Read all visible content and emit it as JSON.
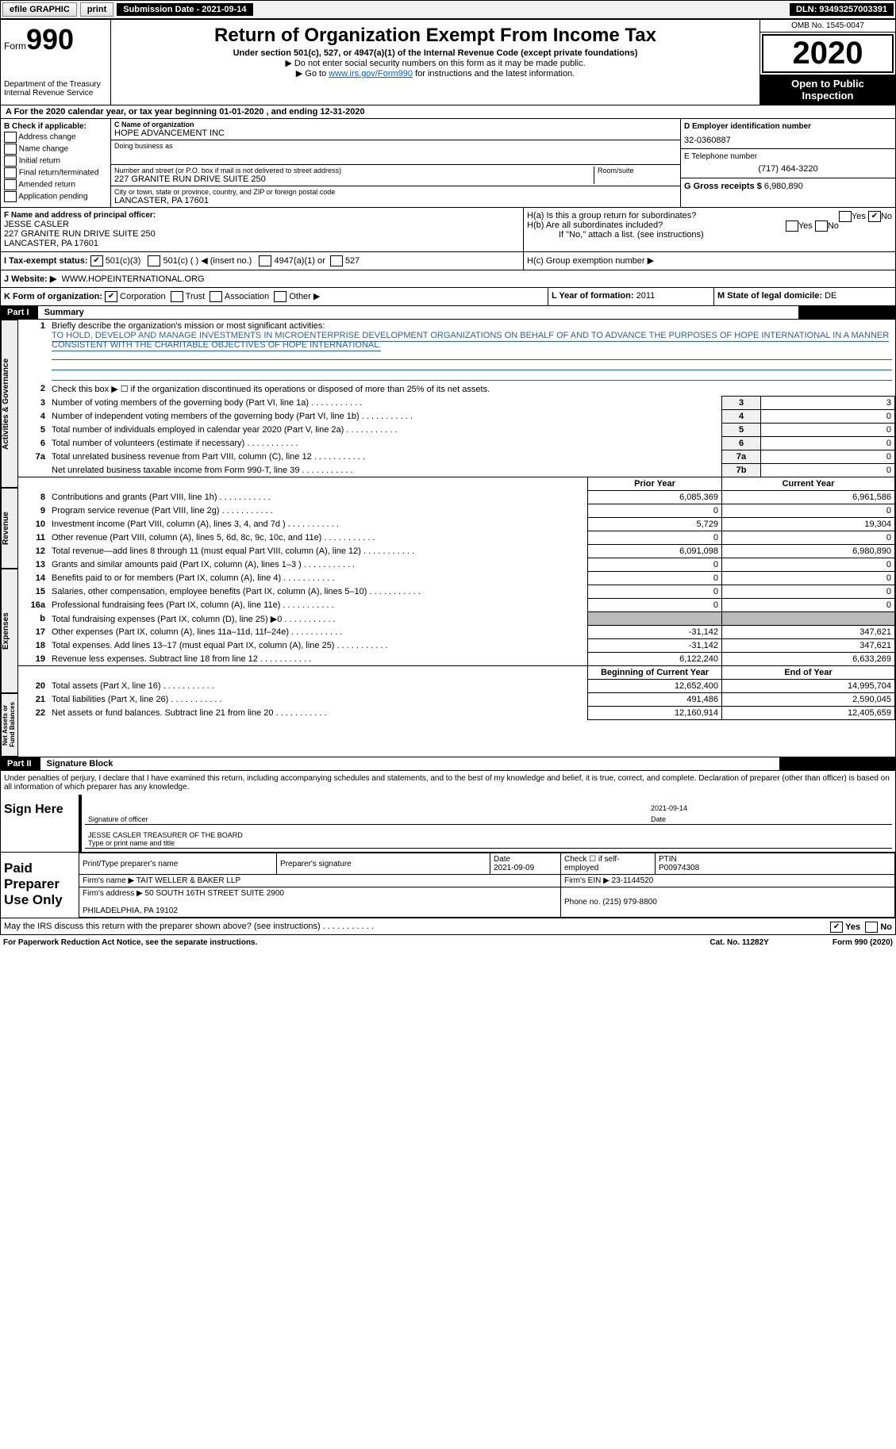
{
  "topbar": {
    "efile": "efile GRAPHIC",
    "print": "print",
    "sub_label": "Submission Date - 2021-09-14",
    "dln": "DLN: 93493257003391"
  },
  "header": {
    "form_label": "Form",
    "form_num": "990",
    "dept": "Department of the Treasury\nInternal Revenue Service",
    "title": "Return of Organization Exempt From Income Tax",
    "subtitle": "Under section 501(c), 527, or 4947(a)(1) of the Internal Revenue Code (except private foundations)",
    "note1": "▶ Do not enter social security numbers on this form as it may be made public.",
    "note2a": "▶ Go to ",
    "note2link": "www.irs.gov/Form990",
    "note2b": " for instructions and the latest information.",
    "omb": "OMB No. 1545-0047",
    "year": "2020",
    "open": "Open to Public\nInspection"
  },
  "lineA": "A For the 2020 calendar year, or tax year beginning 01-01-2020     , and ending 12-31-2020",
  "B": {
    "label": "B Check if applicable:",
    "items": [
      "Address change",
      "Name change",
      "Initial return",
      "Final return/terminated",
      "Amended return",
      "Application pending"
    ]
  },
  "C": {
    "name_label": "C Name of organization",
    "name": "HOPE ADVANCEMENT INC",
    "dba_label": "Doing business as",
    "dba": "",
    "addr_label": "Number and street (or P.O. box if mail is not delivered to street address)",
    "room_label": "Room/suite",
    "addr": "227 GRANITE RUN DRIVE SUITE 250",
    "city_label": "City or town, state or province, country, and ZIP or foreign postal code",
    "city": "LANCASTER, PA  17601"
  },
  "D": {
    "label": "D Employer identification number",
    "val": "32-0360887"
  },
  "E": {
    "label": "E Telephone number",
    "val": "(717) 464-3220"
  },
  "G": {
    "label": "G Gross receipts $",
    "val": "6,980,890"
  },
  "F": {
    "label": "F Name and address of principal officer:",
    "name": "JESSE CASLER",
    "addr": "227 GRANITE RUN DRIVE SUITE 250\nLANCASTER, PA  17601"
  },
  "H": {
    "a": "H(a)  Is this a group return for subordinates?",
    "b": "H(b)  Are all subordinates included?",
    "b2": "If \"No,\" attach a list. (see instructions)",
    "c": "H(c)  Group exemption number ▶",
    "yes": "Yes",
    "no": "No"
  },
  "I": {
    "label": "I   Tax-exempt status:",
    "o1": "501(c)(3)",
    "o2": "501(c) (  ) ◀ (insert no.)",
    "o3": "4947(a)(1) or",
    "o4": "527"
  },
  "J": {
    "label": "J   Website: ▶",
    "val": "WWW.HOPEINTERNATIONAL.ORG"
  },
  "K": {
    "label": "K Form of organization:",
    "o1": "Corporation",
    "o2": "Trust",
    "o3": "Association",
    "o4": "Other ▶"
  },
  "L": {
    "label": "L Year of formation:",
    "val": "2011"
  },
  "M": {
    "label": "M State of legal domicile:",
    "val": "DE"
  },
  "part1": {
    "tag": "Part I",
    "title": "Summary"
  },
  "sec_labels": {
    "gov": "Activities & Governance",
    "rev": "Revenue",
    "exp": "Expenses",
    "net": "Net Assets or\nFund Balances"
  },
  "l1": {
    "label": "Briefly describe the organization's mission or most significant activities:",
    "text": "TO HOLD, DEVELOP AND MANAGE INVESTMENTS IN MICROENTERPRISE DEVELOPMENT ORGANIZATIONS ON BEHALF OF AND TO ADVANCE THE PURPOSES OF HOPE INTERNATIONAL IN A MANNER CONSISTENT WITH THE CHARITABLE OBJECTIVES OF HOPE INTERNATIONAL."
  },
  "l2": "Check this box ▶ ☐  if the organization discontinued its operations or disposed of more than 25% of its net assets.",
  "lines_gov": [
    {
      "n": "3",
      "t": "Number of voting members of the governing body (Part VI, line 1a)",
      "box": "3",
      "v": "3"
    },
    {
      "n": "4",
      "t": "Number of independent voting members of the governing body (Part VI, line 1b)",
      "box": "4",
      "v": "0"
    },
    {
      "n": "5",
      "t": "Total number of individuals employed in calendar year 2020 (Part V, line 2a)",
      "box": "5",
      "v": "0"
    },
    {
      "n": "6",
      "t": "Total number of volunteers (estimate if necessary)",
      "box": "6",
      "v": "0"
    },
    {
      "n": "7a",
      "t": "Total unrelated business revenue from Part VIII, column (C), line 12",
      "box": "7a",
      "v": "0"
    },
    {
      "n": "",
      "t": "Net unrelated business taxable income from Form 990-T, line 39",
      "box": "7b",
      "v": "0"
    }
  ],
  "col_hdrs": {
    "py": "Prior Year",
    "cy": "Current Year"
  },
  "lines_rev": [
    {
      "n": "8",
      "t": "Contributions and grants (Part VIII, line 1h)",
      "py": "6,085,369",
      "cy": "6,961,586"
    },
    {
      "n": "9",
      "t": "Program service revenue (Part VIII, line 2g)",
      "py": "0",
      "cy": "0"
    },
    {
      "n": "10",
      "t": "Investment income (Part VIII, column (A), lines 3, 4, and 7d )",
      "py": "5,729",
      "cy": "19,304"
    },
    {
      "n": "11",
      "t": "Other revenue (Part VIII, column (A), lines 5, 6d, 8c, 9c, 10c, and 11e)",
      "py": "0",
      "cy": "0"
    },
    {
      "n": "12",
      "t": "Total revenue—add lines 8 through 11 (must equal Part VIII, column (A), line 12)",
      "py": "6,091,098",
      "cy": "6,980,890"
    }
  ],
  "lines_exp": [
    {
      "n": "13",
      "t": "Grants and similar amounts paid (Part IX, column (A), lines 1–3 )",
      "py": "0",
      "cy": "0"
    },
    {
      "n": "14",
      "t": "Benefits paid to or for members (Part IX, column (A), line 4)",
      "py": "0",
      "cy": "0"
    },
    {
      "n": "15",
      "t": "Salaries, other compensation, employee benefits (Part IX, column (A), lines 5–10)",
      "py": "0",
      "cy": "0"
    },
    {
      "n": "16a",
      "t": "Professional fundraising fees (Part IX, column (A), line 11e)",
      "py": "0",
      "cy": "0"
    },
    {
      "n": "b",
      "t": "Total fundraising expenses (Part IX, column (D), line 25) ▶0",
      "py": "",
      "cy": "",
      "gray": true
    },
    {
      "n": "17",
      "t": "Other expenses (Part IX, column (A), lines 11a–11d, 11f–24e)",
      "py": "-31,142",
      "cy": "347,621"
    },
    {
      "n": "18",
      "t": "Total expenses. Add lines 13–17 (must equal Part IX, column (A), line 25)",
      "py": "-31,142",
      "cy": "347,621"
    },
    {
      "n": "19",
      "t": "Revenue less expenses. Subtract line 18 from line 12",
      "py": "6,122,240",
      "cy": "6,633,269"
    }
  ],
  "col_hdrs2": {
    "py": "Beginning of Current Year",
    "cy": "End of Year"
  },
  "lines_net": [
    {
      "n": "20",
      "t": "Total assets (Part X, line 16)",
      "py": "12,652,400",
      "cy": "14,995,704"
    },
    {
      "n": "21",
      "t": "Total liabilities (Part X, line 26)",
      "py": "491,486",
      "cy": "2,590,045"
    },
    {
      "n": "22",
      "t": "Net assets or fund balances. Subtract line 21 from line 20",
      "py": "12,160,914",
      "cy": "12,405,659"
    }
  ],
  "part2": {
    "tag": "Part II",
    "title": "Signature Block"
  },
  "sig": {
    "decl": "Under penalties of perjury, I declare that I have examined this return, including accompanying schedules and statements, and to the best of my knowledge and belief, it is true, correct, and complete. Declaration of preparer (other than officer) is based on all information of which preparer has any knowledge.",
    "sign_here": "Sign Here",
    "sig_officer": "Signature of officer",
    "date": "Date",
    "date_val": "2021-09-14",
    "name": "JESSE CASLER  TREASURER OF THE BOARD",
    "name_lbl": "Type or print name and title",
    "paid": "Paid Preparer Use Only",
    "prep_name_lbl": "Print/Type preparer's name",
    "prep_sig_lbl": "Preparer's signature",
    "prep_date_lbl": "Date",
    "prep_date": "2021-09-09",
    "check_se": "Check ☐ if self-employed",
    "ptin_lbl": "PTIN",
    "ptin": "P00974308",
    "firm_name_lbl": "Firm's name   ▶",
    "firm_name": "TAIT WELLER & BAKER LLP",
    "firm_ein_lbl": "Firm's EIN ▶",
    "firm_ein": "23-1144520",
    "firm_addr_lbl": "Firm's address ▶",
    "firm_addr": "50 SOUTH 16TH STREET SUITE 2900\n\nPHILADELPHIA, PA  19102",
    "phone_lbl": "Phone no.",
    "phone": "(215) 979-8800",
    "may_irs": "May the IRS discuss this return with the preparer shown above? (see instructions)",
    "yes": "Yes",
    "no": "No"
  },
  "footer": {
    "pra": "For Paperwork Reduction Act Notice, see the separate instructions.",
    "cat": "Cat. No. 11282Y",
    "form": "Form 990 (2020)"
  }
}
